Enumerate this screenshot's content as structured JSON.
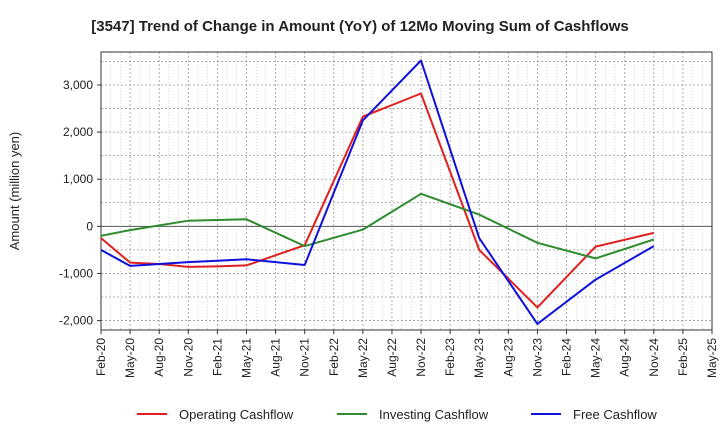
{
  "chart_data": {
    "type": "line",
    "title": "[3547]  Trend of Change in Amount (YoY) of 12Mo Moving Sum of Cashflows",
    "xlabel": "",
    "ylabel": "Amount (million yen)",
    "ylim": [
      -2200,
      3700
    ],
    "yticks": [
      3000,
      2000,
      1000,
      0,
      -1000,
      -2000
    ],
    "ytick_labels": [
      "3,000",
      "2,000",
      "1,000",
      "0",
      "-1,000",
      "-2,000"
    ],
    "categories": [
      "Feb-20",
      "May-20",
      "Aug-20",
      "Nov-20",
      "Feb-21",
      "May-21",
      "Aug-21",
      "Nov-21",
      "Feb-22",
      "May-22",
      "Aug-22",
      "Nov-22",
      "Feb-23",
      "May-23",
      "Aug-23",
      "Nov-23",
      "Feb-24",
      "May-24",
      "Aug-24",
      "Nov-24",
      "Feb-25",
      "May-25"
    ],
    "series": [
      {
        "name": "Operating Cashflow",
        "color": "#e02020",
        "values": [
          -250,
          -770,
          -800,
          -860,
          -850,
          -830,
          null,
          -400,
          null,
          2330,
          null,
          2820,
          null,
          -500,
          null,
          -1720,
          null,
          -430,
          null,
          -140,
          null,
          null
        ]
      },
      {
        "name": "Investing Cashflow",
        "color": "#2e8b2e",
        "values": [
          -200,
          -80,
          null,
          120,
          null,
          150,
          null,
          -420,
          null,
          -70,
          null,
          690,
          null,
          250,
          null,
          -350,
          null,
          -680,
          null,
          -280,
          null,
          null
        ]
      },
      {
        "name": "Free Cashflow",
        "color": "#1010dd",
        "values": [
          -500,
          -840,
          -800,
          -760,
          -730,
          -700,
          null,
          -820,
          null,
          2250,
          null,
          3520,
          null,
          -250,
          null,
          -2070,
          null,
          -1130,
          null,
          -420,
          null,
          null
        ]
      }
    ]
  }
}
